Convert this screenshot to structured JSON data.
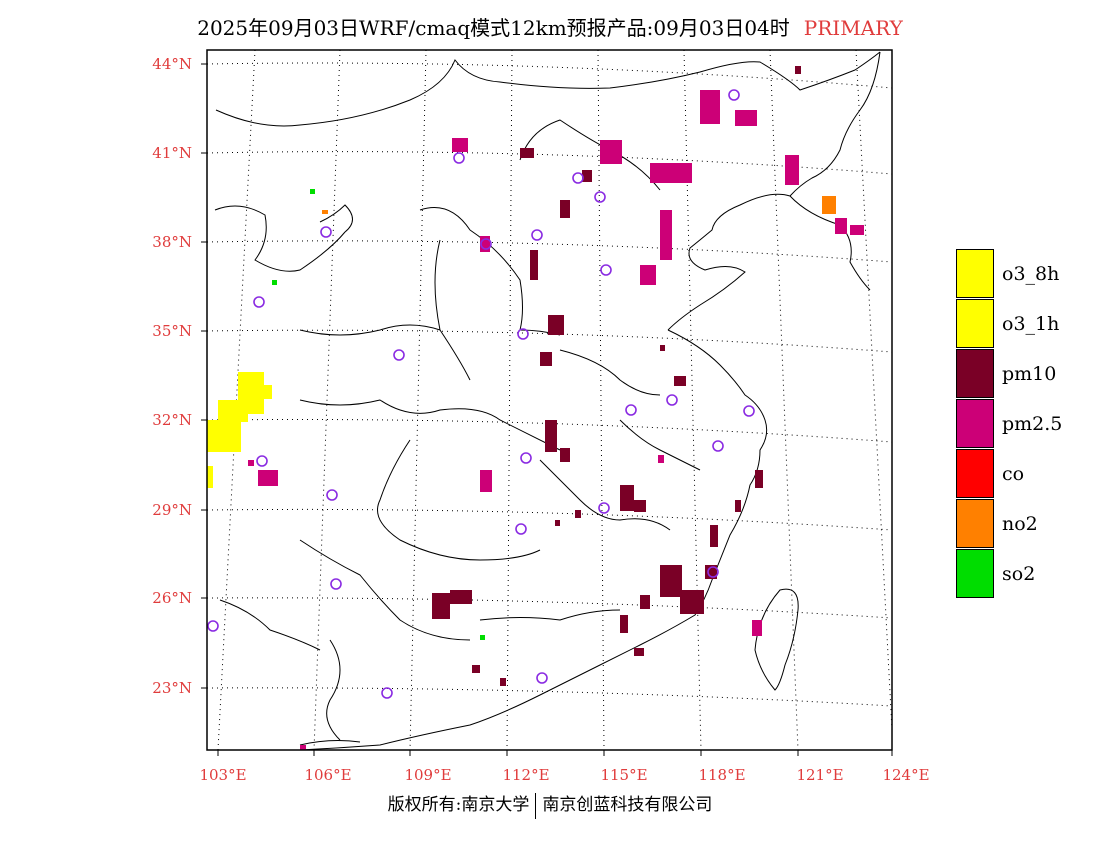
{
  "title": {
    "main": "2025年09月03日WRF/cmaq模式12km预报产品:09月03日04时",
    "tag": "PRIMARY"
  },
  "lat_labels": [
    "44°N",
    "41°N",
    "38°N",
    "35°N",
    "32°N",
    "29°N",
    "26°N",
    "23°N"
  ],
  "lon_labels": [
    "103°E",
    "106°E",
    "109°E",
    "112°E",
    "115°E",
    "118°E",
    "121°E",
    "124°E"
  ],
  "legend": [
    {
      "label": "o3_8h",
      "color": "#ffff00"
    },
    {
      "label": "o3_1h",
      "color": "#ffff00"
    },
    {
      "label": "pm10",
      "color": "#7a0026"
    },
    {
      "label": "pm2.5",
      "color": "#cc0077"
    },
    {
      "label": "co",
      "color": "#ff0000"
    },
    {
      "label": "no2",
      "color": "#ff8000"
    },
    {
      "label": "so2",
      "color": "#00dd00"
    }
  ],
  "footer": {
    "left": "版权所有:南京大学",
    "right": "南京创蓝科技有限公司"
  },
  "station_color": "#8a2be2"
}
